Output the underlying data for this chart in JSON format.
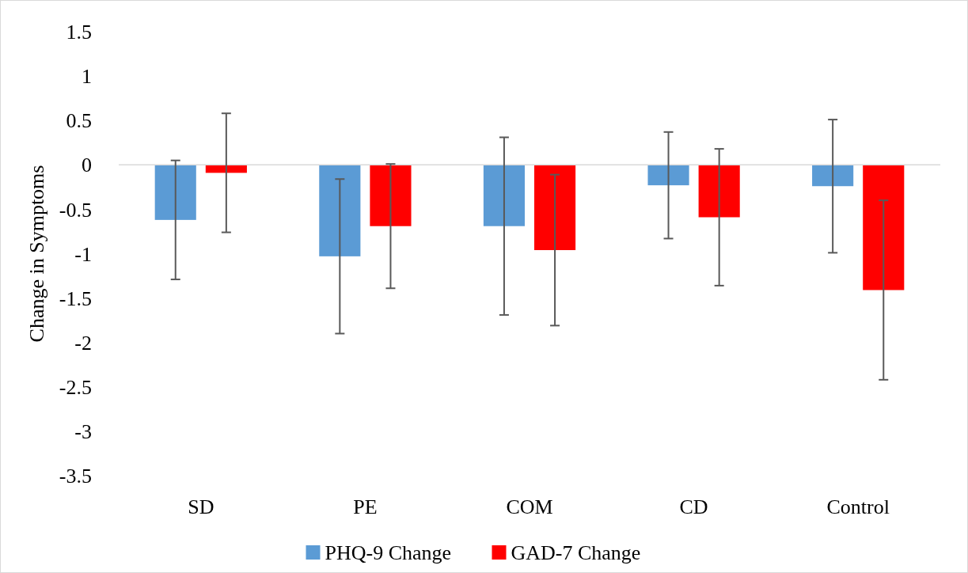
{
  "chart_data": {
    "type": "bar",
    "ylabel": "Change in Symptoms",
    "categories": [
      "SD",
      "PE",
      "COM",
      "CD",
      "Control"
    ],
    "series": [
      {
        "name": "PHQ-9 Change",
        "color": "#5b9bd5",
        "values": [
          -0.62,
          -1.03,
          -0.69,
          -0.23,
          -0.24
        ],
        "errors": [
          0.67,
          0.87,
          1.0,
          0.6,
          0.75
        ]
      },
      {
        "name": "GAD-7 Change",
        "color": "#ff0000",
        "values": [
          -0.09,
          -0.69,
          -0.96,
          -0.59,
          -1.41
        ],
        "errors": [
          0.67,
          0.7,
          0.85,
          0.77,
          1.01
        ]
      }
    ],
    "ylim": [
      -3.5,
      1.5
    ],
    "yticks": [
      {
        "value": 1.5,
        "label": "1.5"
      },
      {
        "value": 1,
        "label": "1"
      },
      {
        "value": 0.5,
        "label": "0.5"
      },
      {
        "value": 0,
        "label": "0"
      },
      {
        "value": -0.5,
        "label": "-0.5"
      },
      {
        "value": -1,
        "label": "-1"
      },
      {
        "value": -1.5,
        "label": "-1.5"
      },
      {
        "value": -2,
        "label": "-2"
      },
      {
        "value": -2.5,
        "label": "-2.5"
      },
      {
        "value": -3,
        "label": "-3"
      },
      {
        "value": -3.5,
        "label": "-3.5"
      }
    ],
    "legend": "bottom"
  }
}
